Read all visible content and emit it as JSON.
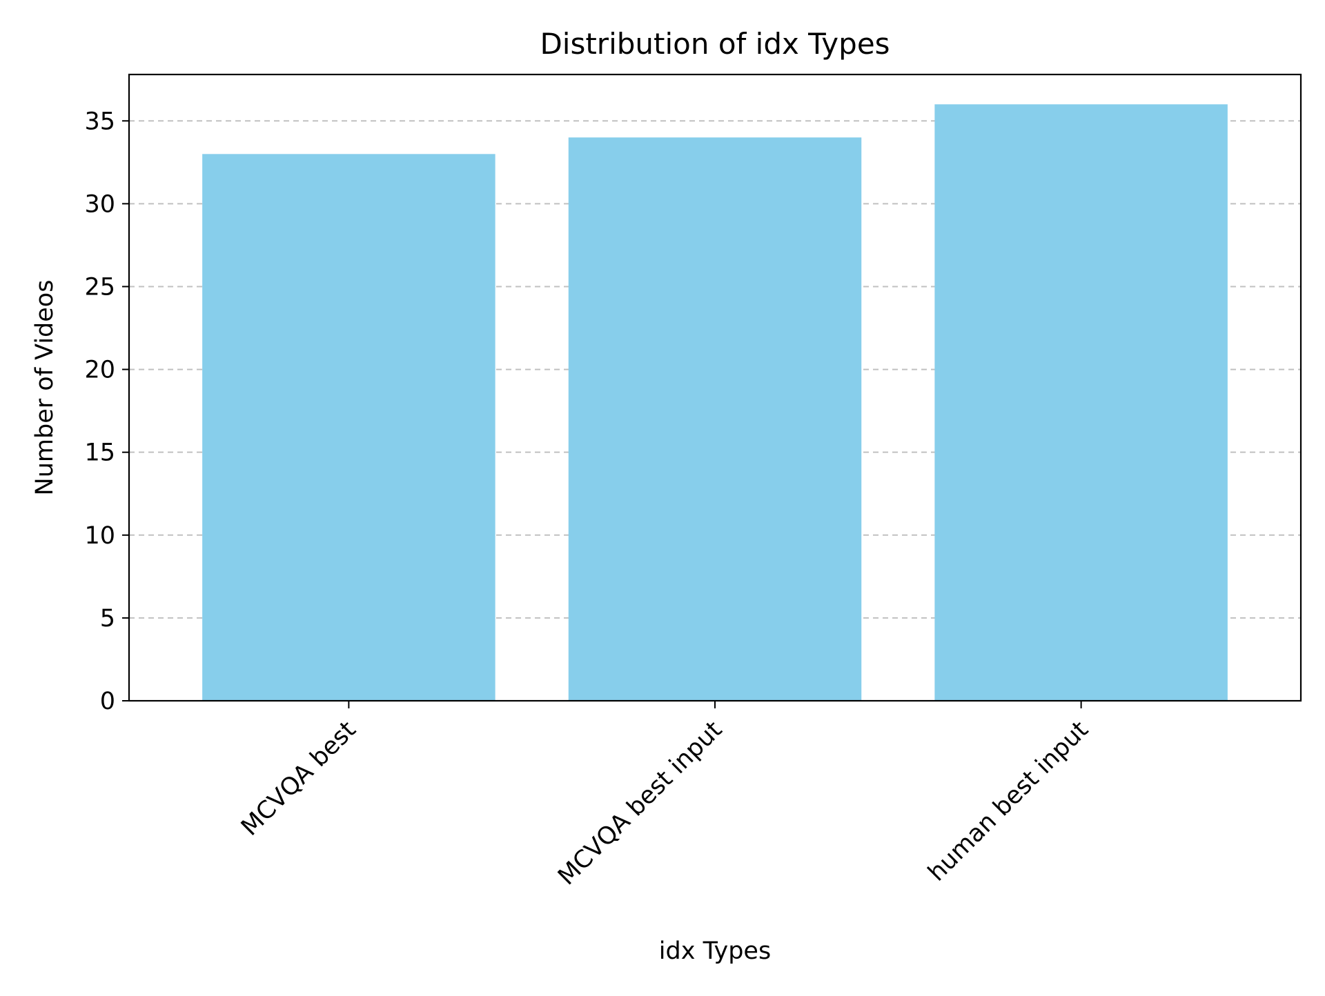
{
  "chart_data": {
    "type": "bar",
    "title": "Distribution of idx Types",
    "xlabel": "idx Types",
    "ylabel": "Number of Videos",
    "categories": [
      "MCVQA best",
      "MCVQA best input",
      "human best input"
    ],
    "values": [
      33,
      34,
      36
    ],
    "ylim": [
      0,
      37.8
    ],
    "yticks": [
      0,
      5,
      10,
      15,
      20,
      25,
      30,
      35
    ],
    "grid": "y-dashed",
    "legend": "none",
    "colors": {
      "bar": "#87CEEB",
      "grid": "#c0c0c0",
      "axis": "#000000"
    }
  }
}
